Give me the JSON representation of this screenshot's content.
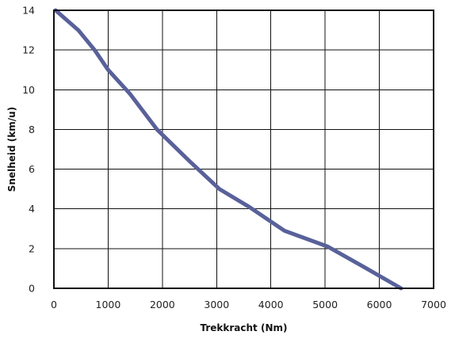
{
  "chart_data": {
    "type": "line",
    "title": "",
    "xlabel": "Trekkracht (Nm)",
    "ylabel": "Snelheid (km/u)",
    "xlim": [
      0,
      7000
    ],
    "ylim": [
      0,
      14
    ],
    "x_ticks": [
      0,
      1000,
      2000,
      3000,
      4000,
      5000,
      6000,
      7000
    ],
    "y_ticks": [
      0,
      2,
      4,
      6,
      8,
      10,
      12,
      14
    ],
    "x_tick_labels": [
      "0",
      "1000",
      "2000",
      "3000",
      "4000",
      "5000",
      "6000",
      "7000"
    ],
    "y_tick_labels": [
      "0",
      "2",
      "4",
      "6",
      "8",
      "10",
      "12",
      "14"
    ],
    "grid": true,
    "legend": "none",
    "series": [
      {
        "color": "#59619a",
        "x": [
          30,
          450,
          750,
          1000,
          1400,
          1900,
          2500,
          3050,
          3600,
          4250,
          5050,
          5700,
          6400
        ],
        "y": [
          14,
          13,
          12,
          11,
          9.8,
          8,
          6.4,
          5,
          4.1,
          2.9,
          2.1,
          1.1,
          0
        ]
      }
    ]
  }
}
